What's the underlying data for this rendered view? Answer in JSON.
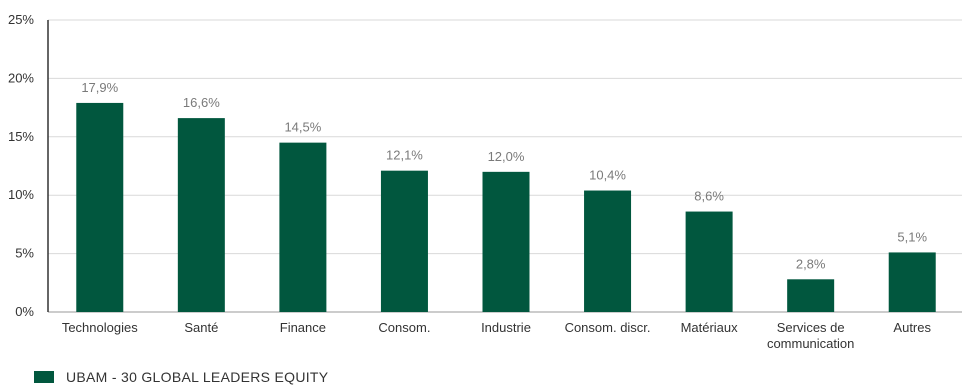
{
  "chart_data": {
    "type": "bar",
    "categories": [
      "Technologies",
      "Santé",
      "Finance",
      "Consom.",
      "Industrie",
      "Consom. discr.",
      "Matériaux",
      "Services de communication",
      "Autres"
    ],
    "category_label_lines": [
      [
        "Technologies"
      ],
      [
        "Santé"
      ],
      [
        "Finance"
      ],
      [
        "Consom."
      ],
      [
        "Industrie"
      ],
      [
        "Consom. discr."
      ],
      [
        "Matériaux"
      ],
      [
        "Services de",
        "communication"
      ],
      [
        "Autres"
      ]
    ],
    "series": [
      {
        "name": "UBAM - 30 GLOBAL LEADERS EQUITY",
        "values": [
          17.9,
          16.6,
          14.5,
          12.1,
          12.0,
          10.4,
          8.6,
          2.8,
          5.1
        ],
        "data_labels": [
          "17,9%",
          "16,6%",
          "14,5%",
          "12,1%",
          "12,0%",
          "10,4%",
          "8,6%",
          "2,8%",
          "5,1%"
        ],
        "color": "#01573e"
      }
    ],
    "y_ticks": [
      0,
      5,
      10,
      15,
      20,
      25
    ],
    "y_tick_labels": [
      "0%",
      "5%",
      "10%",
      "15%",
      "20%",
      "25%"
    ],
    "ylim": [
      0,
      25
    ],
    "grid": true,
    "legend_position": "bottom-left",
    "title": "",
    "xlabel": "",
    "ylabel": ""
  },
  "legend": {
    "label": "UBAM - 30 GLOBAL LEADERS EQUITY",
    "color": "#01573e"
  },
  "colors": {
    "bar": "#01573e",
    "grid": "#d9d9d9",
    "axis": "#333333"
  }
}
